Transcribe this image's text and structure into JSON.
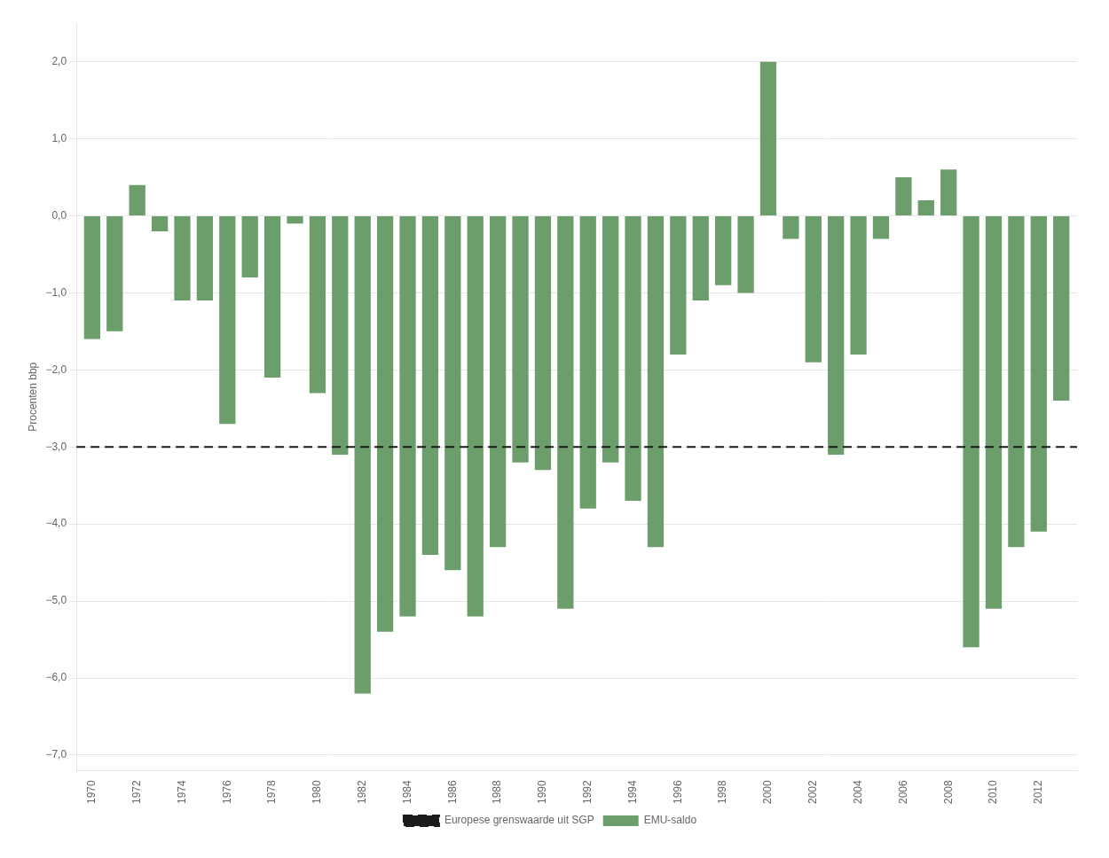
{
  "chart_data": {
    "type": "bar",
    "x": [
      1970,
      1971,
      1972,
      1973,
      1974,
      1975,
      1976,
      1977,
      1978,
      1979,
      1980,
      1981,
      1982,
      1983,
      1984,
      1985,
      1986,
      1987,
      1988,
      1989,
      1990,
      1991,
      1992,
      1993,
      1994,
      1995,
      1996,
      1997,
      1998,
      1999,
      2000,
      2001,
      2002,
      2003,
      2004,
      2005,
      2006,
      2007,
      2008,
      2009,
      2010,
      2011,
      2012,
      2013
    ],
    "xlim": [
      1969.3,
      2013.7
    ],
    "xticks": [
      1970,
      1972,
      1974,
      1976,
      1978,
      1980,
      1982,
      1984,
      1986,
      1988,
      1990,
      1992,
      1994,
      1996,
      1998,
      2000,
      2002,
      2004,
      2006,
      2008,
      2010,
      2012
    ],
    "ylabel": "Procenten bbp",
    "ylim": [
      -7.2,
      2.5
    ],
    "yticks": [
      {
        "value": 2.0,
        "label": "2,0"
      },
      {
        "value": 1.0,
        "label": "1,0"
      },
      {
        "value": 0.0,
        "label": "0,0"
      },
      {
        "value": -1.0,
        "label": "−1,0"
      },
      {
        "value": -2.0,
        "label": "−2,0"
      },
      {
        "value": -3.0,
        "label": "−3,0"
      },
      {
        "value": -4.0,
        "label": "−4,0"
      },
      {
        "value": -5.0,
        "label": "−5,0"
      },
      {
        "value": -6.0,
        "label": "−6,0"
      },
      {
        "value": -7.0,
        "label": "−7,0"
      }
    ],
    "grid": "y",
    "legend": "bottom",
    "series": [
      {
        "name": "EMU-saldo",
        "type": "bar",
        "color": "#6b9e6b",
        "values": [
          -1.6,
          -1.5,
          0.4,
          -0.2,
          -1.1,
          -1.1,
          -2.7,
          -0.8,
          -2.1,
          -0.1,
          -2.3,
          -3.1,
          -6.2,
          -5.4,
          -5.2,
          -4.4,
          -4.6,
          -5.2,
          -4.3,
          -3.2,
          -3.3,
          -5.1,
          -3.8,
          -3.2,
          -3.7,
          -4.3,
          -1.8,
          -1.1,
          -0.9,
          -1.0,
          2.0,
          -0.3,
          -1.9,
          -3.1,
          -1.8,
          -0.3,
          0.5,
          0.2,
          0.6,
          -5.6,
          -5.1,
          -4.3,
          -4.1,
          -2.4
        ]
      }
    ],
    "reference_lines": [
      {
        "name": "Europese grenswaarde uit SGP",
        "y": -3.0,
        "color": "#1a1a1a",
        "line_style": "dashed"
      }
    ]
  }
}
